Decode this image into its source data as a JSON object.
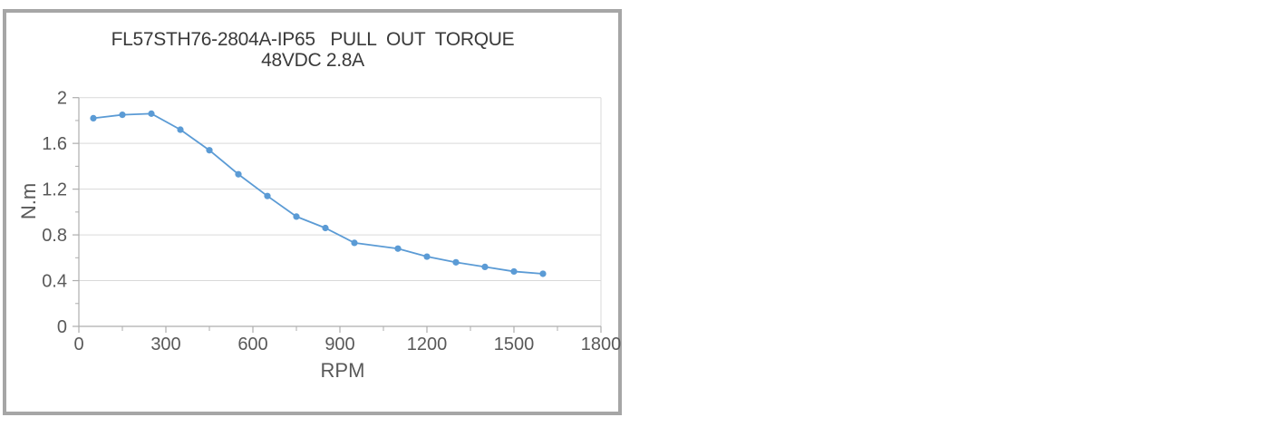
{
  "page": {
    "background": "#ffffff"
  },
  "frame": {
    "border_color": "#a6a6a6"
  },
  "chart_data": {
    "type": "line",
    "title_line1": "FL57STH76-2804A-IP65   PULL  OUT  TORQUE",
    "title_line2": "48VDC 2.8A",
    "xlabel": "RPM",
    "ylabel": "N.m",
    "legend": "none",
    "grid": "horizontal-major",
    "xlim": [
      0,
      1800
    ],
    "ylim": [
      0,
      2
    ],
    "x": [
      50,
      150,
      250,
      350,
      450,
      550,
      650,
      750,
      850,
      950,
      1100,
      1200,
      1300,
      1400,
      1500,
      1600
    ],
    "series": [
      {
        "name": "pull-out-torque",
        "values": [
          1.82,
          1.85,
          1.86,
          1.72,
          1.54,
          1.33,
          1.14,
          0.96,
          0.86,
          0.73,
          0.68,
          0.61,
          0.56,
          0.52,
          0.48,
          0.46
        ],
        "color": "#5b9bd5"
      }
    ],
    "x_ticks": [
      {
        "v": 0,
        "label": "0"
      },
      {
        "v": 300,
        "label": "300"
      },
      {
        "v": 600,
        "label": "600"
      },
      {
        "v": 900,
        "label": "900"
      },
      {
        "v": 1200,
        "label": "1200"
      },
      {
        "v": 1500,
        "label": "1500"
      },
      {
        "v": 1800,
        "label": "1800"
      }
    ],
    "x_minor_ticks": [
      150,
      450,
      750,
      1050,
      1350,
      1650
    ],
    "y_ticks": [
      {
        "v": 0,
        "label": "0"
      },
      {
        "v": 0.4,
        "label": "0.4"
      },
      {
        "v": 0.8,
        "label": "0.8"
      },
      {
        "v": 1.2,
        "label": "1.2"
      },
      {
        "v": 1.6,
        "label": "1.6"
      },
      {
        "v": 2,
        "label": "2"
      }
    ],
    "y_minor_ticks": [
      0.2,
      0.6,
      1.0,
      1.4,
      1.8
    ],
    "colors": {
      "grid": "#d9d9d9",
      "axis": "#aeaeae",
      "tick": "#aeaeae",
      "tick_label": "#595959",
      "title": "#3a3a3a"
    }
  }
}
